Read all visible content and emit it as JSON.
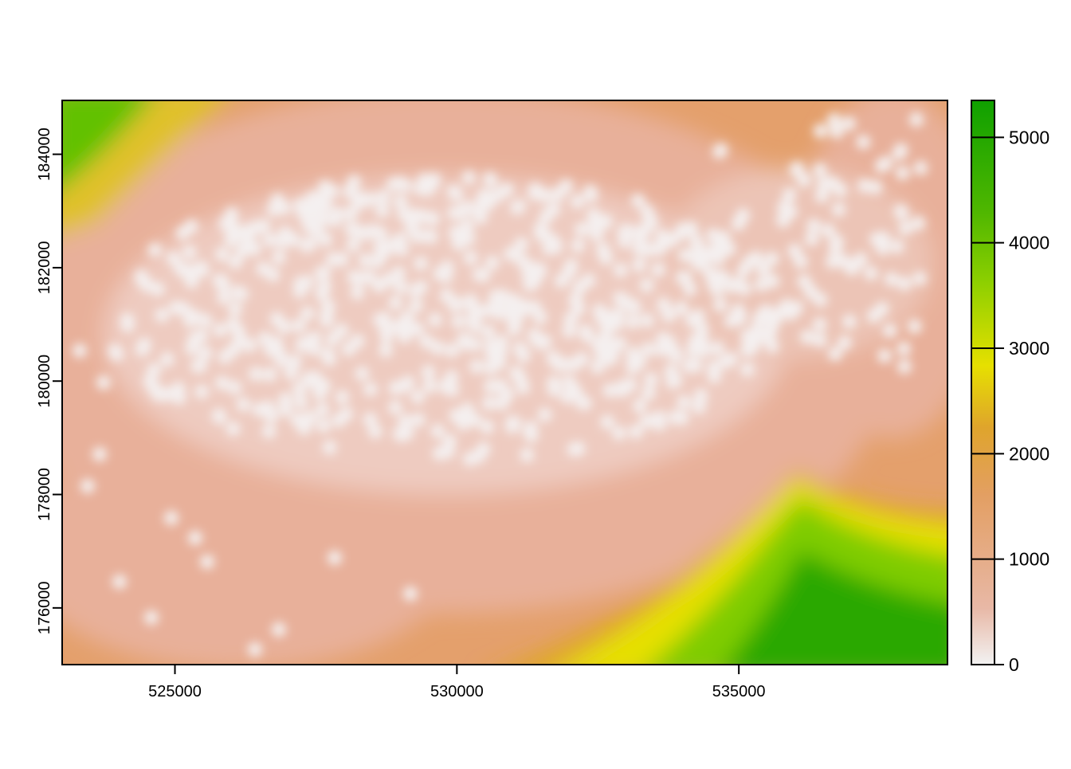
{
  "chart_data": {
    "type": "heatmap",
    "title": "",
    "xlabel": "",
    "ylabel": "",
    "xlim": [
      523000,
      538700
    ],
    "ylim": [
      175000,
      184950
    ],
    "x_ticks": [
      525000,
      530000,
      535000
    ],
    "x_tick_labels": [
      "525000",
      "530000",
      "535000"
    ],
    "y_ticks": [
      176000,
      178000,
      180000,
      182000,
      184000
    ],
    "y_tick_labels": [
      "176000",
      "178000",
      "180000",
      "182000",
      "184000"
    ],
    "legend": {
      "placement": "right",
      "min": 0,
      "max": 5350,
      "ticks": [
        0,
        1000,
        2000,
        3000,
        4000,
        5000
      ],
      "tick_labels": [
        "0",
        "1000",
        "2000",
        "3000",
        "4000",
        "5000"
      ]
    },
    "colormap": [
      "#f2f2f2",
      "#e8b8a6",
      "#e39f63",
      "#dfa42c",
      "#e6e000",
      "#8ccf00",
      "#50b700",
      "#0fa000"
    ],
    "description_series": {
      "name": "",
      "green_corners": [
        {
          "x": 523000,
          "y": 184950,
          "value": 4000
        },
        {
          "x": 536500,
          "y": 175000,
          "value": 5300
        }
      ]
    }
  }
}
